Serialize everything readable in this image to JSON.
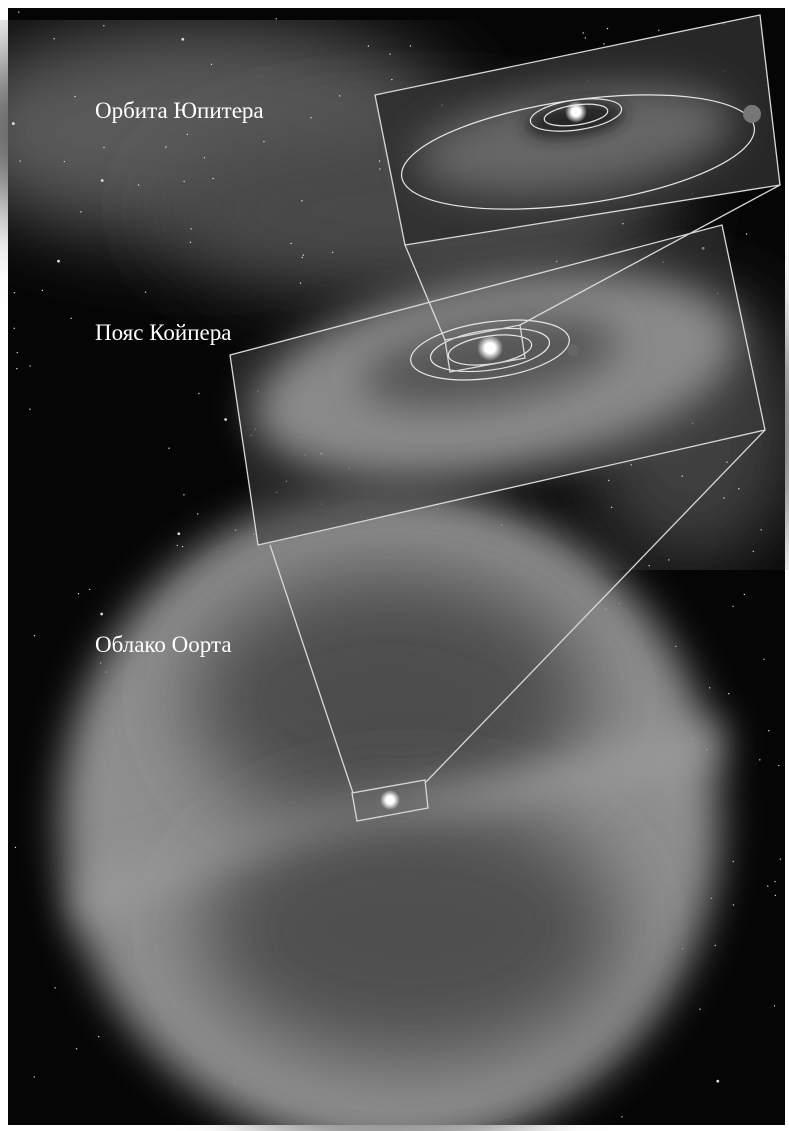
{
  "labels": {
    "jupiter": "Орбита Юпитера",
    "kuiper": "Пояс Койпера",
    "oort": "Облако Оорта"
  }
}
